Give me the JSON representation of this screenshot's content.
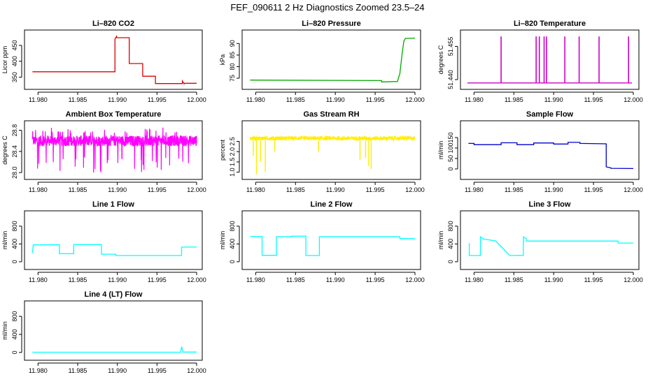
{
  "page_title": "FEF_090611  2 Hz Diagnostics Zoomed 23.5–24",
  "chart_data": [
    {
      "type": "line",
      "title": "Li–820 CO2",
      "ylabel": "Licor ppm",
      "color": "#dd0000",
      "xlim": [
        11.979,
        12.0
      ],
      "ylim": [
        325,
        485
      ],
      "x_ticks": [
        "11.980",
        "11.985",
        "11.990",
        "11.995",
        "12.000"
      ],
      "y_ticks": [
        350,
        400,
        450
      ],
      "series": [
        {
          "x": [
            11.9793,
            11.9897,
            11.9897,
            11.9899,
            11.9899,
            11.9915,
            11.9915,
            11.9932,
            11.9932,
            11.9948,
            11.9948,
            11.9982,
            11.9982,
            11.9984,
            11.9984,
            12.0
          ],
          "y": [
            367,
            367,
            470,
            478,
            474,
            474,
            393,
            393,
            353,
            353,
            330,
            330,
            338,
            330,
            331,
            331
          ]
        }
      ]
    },
    {
      "type": "line",
      "title": "Li–820 Pressure",
      "ylabel": "kPa",
      "color": "#00aa00",
      "xlim": [
        11.979,
        12.0
      ],
      "ylim": [
        72,
        94
      ],
      "x_ticks": [
        "11.980",
        "11.985",
        "11.990",
        "11.995",
        "12.000"
      ],
      "y_ticks": [
        75,
        80,
        85,
        90
      ],
      "series": [
        {
          "x": [
            11.9793,
            11.9958,
            11.9958,
            11.9978,
            11.9981,
            11.9984,
            11.9986,
            11.9988,
            12.0
          ],
          "y": [
            74.2,
            74.0,
            73.4,
            73.6,
            77,
            86,
            91,
            92.2,
            92.3
          ]
        }
      ]
    },
    {
      "type": "line",
      "title": "Li–820 Temperature",
      "ylabel": "degrees C",
      "color": "#cc00cc",
      "xlim": [
        11.979,
        12.0
      ],
      "ylim": [
        51.4375,
        51.4605
      ],
      "x_ticks": [
        "11.980",
        "11.985",
        "11.990",
        "11.995",
        "12.000"
      ],
      "y_ticks": [
        "51.440",
        "51.455"
      ],
      "baseline": 51.4385,
      "spike_top": 51.4595,
      "spikes_x": [
        11.9834,
        11.9878,
        11.9882,
        11.9888,
        11.9891,
        11.9914,
        11.9932,
        11.9957,
        11.9994
      ]
    },
    {
      "type": "line",
      "title": "Ambient Box Temperature",
      "ylabel": "degrees C",
      "color": "#ff00ff",
      "xlim": [
        11.979,
        12.0
      ],
      "ylim": [
        27.95,
        28.9
      ],
      "x_ticks": [
        "11.980",
        "11.985",
        "11.990",
        "11.995",
        "12.000"
      ],
      "y_ticks": [
        "28.0",
        "28.4",
        "28.8"
      ],
      "band": [
        28.5,
        28.7
      ],
      "noise_extremes": [
        28.0,
        28.85
      ]
    },
    {
      "type": "line",
      "title": "Gas Stream RH",
      "ylabel": "percent",
      "color": "#ffee00",
      "xlim": [
        11.979,
        12.0
      ],
      "ylim": [
        0.85,
        3.3
      ],
      "x_ticks": [
        "11.980",
        "11.985",
        "11.990",
        "11.995",
        "12.000"
      ],
      "y_ticks": [
        "1.0",
        "1.5",
        "2.0",
        "2.5"
      ],
      "band": [
        2.55,
        2.75
      ],
      "dips_x": [
        11.9797,
        11.9801,
        11.9806,
        11.9812,
        11.9824,
        11.9879,
        11.9931,
        11.9938,
        11.9942,
        11.9945
      ],
      "dips_y": [
        1.8,
        0.9,
        1.5,
        1.0,
        2.0,
        2.0,
        1.6,
        1.7,
        1.3,
        1.15
      ]
    },
    {
      "type": "line",
      "title": "Sample Flow",
      "ylabel": "ml/min",
      "color": "#0000cc",
      "xlim": [
        11.979,
        12.0
      ],
      "ylim": [
        -30,
        210
      ],
      "x_ticks": [
        "11.980",
        "11.985",
        "11.990",
        "11.995",
        "12.000"
      ],
      "y_ticks": [
        0,
        50,
        100,
        150
      ],
      "series": [
        {
          "x": [
            11.9793,
            11.98,
            11.98,
            11.9834,
            11.9834,
            11.9854,
            11.9854,
            11.9875,
            11.9875,
            11.99,
            11.99,
            11.9918,
            11.9918,
            11.9933,
            11.9933,
            11.9966,
            11.9966,
            11.9972,
            11.9972,
            12.0
          ],
          "y": [
            122,
            122,
            116,
            116,
            125,
            125,
            116,
            116,
            124,
            124,
            119,
            119,
            127,
            127,
            122,
            120,
            10,
            5,
            3,
            2
          ]
        }
      ]
    },
    {
      "type": "line",
      "title": "Line 1 Flow",
      "ylabel": "ml/min",
      "color": "#00ffff",
      "xlim": [
        11.979,
        12.0
      ],
      "ylim": [
        -80,
        1050
      ],
      "x_ticks": [
        "11.980",
        "11.985",
        "11.990",
        "11.995",
        "12.000"
      ],
      "y_ticks": [
        0,
        400,
        800
      ],
      "series": [
        {
          "x": [
            11.9793,
            11.9794,
            11.9794,
            11.9827,
            11.9827,
            11.9845,
            11.9845,
            11.988,
            11.988,
            11.9898,
            11.9898,
            11.9981,
            11.9981,
            12.0
          ],
          "y": [
            200,
            380,
            380,
            380,
            180,
            180,
            385,
            385,
            170,
            170,
            140,
            140,
            330,
            330
          ]
        }
      ]
    },
    {
      "type": "line",
      "title": "Line 2 Flow",
      "ylabel": "ml/min",
      "color": "#00ffff",
      "xlim": [
        11.979,
        12.0
      ],
      "ylim": [
        -80,
        1050
      ],
      "x_ticks": [
        "11.980",
        "11.985",
        "11.990",
        "11.995",
        "12.000"
      ],
      "y_ticks": [
        0,
        400,
        800
      ],
      "series": [
        {
          "x": [
            11.9793,
            11.9808,
            11.9808,
            11.9826,
            11.9826,
            11.9845,
            11.9845,
            11.9863,
            11.9863,
            11.988,
            11.988,
            11.9981,
            11.9981,
            12.0
          ],
          "y": [
            570,
            570,
            145,
            145,
            560,
            560,
            575,
            575,
            140,
            140,
            560,
            560,
            520,
            520
          ]
        }
      ]
    },
    {
      "type": "line",
      "title": "Line 3 Flow",
      "ylabel": "ml/min",
      "color": "#00ffff",
      "xlim": [
        11.979,
        12.0
      ],
      "ylim": [
        -80,
        1050
      ],
      "x_ticks": [
        "11.980",
        "11.985",
        "11.990",
        "11.995",
        "12.000"
      ],
      "y_ticks": [
        0,
        400,
        800
      ],
      "series": [
        {
          "x": [
            11.9794,
            11.9794,
            11.9808,
            11.9808,
            11.9812,
            11.9812,
            11.9827,
            11.9827,
            11.9845,
            11.9845,
            11.9862,
            11.9862,
            11.9866,
            11.9866,
            11.9981,
            11.9981,
            12.0
          ],
          "y": [
            420,
            140,
            140,
            560,
            510,
            510,
            470,
            470,
            140,
            140,
            145,
            560,
            510,
            465,
            465,
            420,
            420
          ]
        }
      ]
    },
    {
      "type": "line",
      "title": "Line 4 (LT) Flow",
      "ylabel": "ml/min",
      "color": "#00ffff",
      "xlim": [
        11.979,
        12.0
      ],
      "ylim": [
        -80,
        1050
      ],
      "x_ticks": [
        "11.980",
        "11.985",
        "11.990",
        "11.995",
        "12.000"
      ],
      "y_ticks": [
        0,
        400,
        800
      ],
      "series": [
        {
          "x": [
            11.9793,
            11.998,
            11.9981,
            11.9982,
            11.9983,
            12.0
          ],
          "y": [
            5,
            5,
            130,
            60,
            8,
            8
          ]
        }
      ]
    }
  ]
}
